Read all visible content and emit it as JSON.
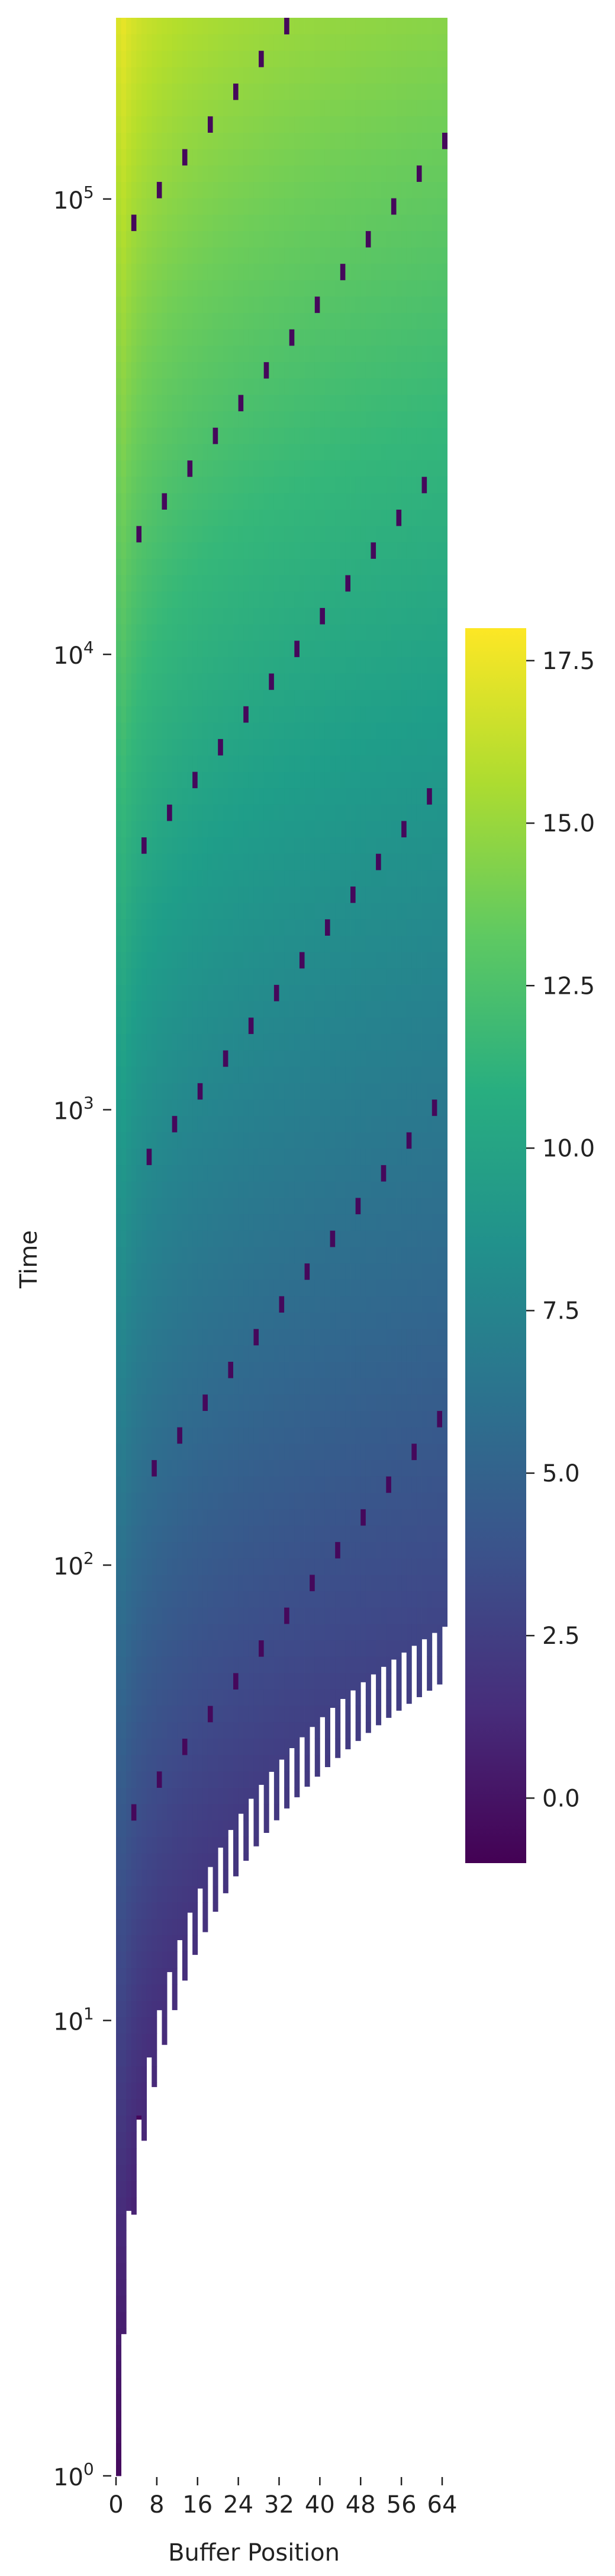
{
  "chart_data": {
    "type": "heatmap",
    "title": "",
    "xlabel": "Buffer Position",
    "ylabel": "Time",
    "x_range": [
      0,
      64
    ],
    "x_ticks": [
      0,
      8,
      16,
      24,
      32,
      40,
      48,
      56,
      64
    ],
    "y_scale": "log",
    "y_range": [
      1,
      250000
    ],
    "y_ticks": [
      {
        "value": 1,
        "base": "10",
        "exp": "0"
      },
      {
        "value": 10,
        "base": "10",
        "exp": "1"
      },
      {
        "value": 100,
        "base": "10",
        "exp": "2"
      },
      {
        "value": 1000,
        "base": "10",
        "exp": "3"
      },
      {
        "value": 10000,
        "base": "10",
        "exp": "4"
      },
      {
        "value": 100000,
        "base": "10",
        "exp": "5"
      }
    ],
    "colormap": "viridis",
    "colorbar": {
      "vmin": -1.0,
      "vmax": 18.0,
      "ticks": [
        "0.0",
        "2.5",
        "5.0",
        "7.5",
        "10.0",
        "12.5",
        "15.0",
        "17.5"
      ]
    },
    "value_model": "cell value ≈ log2(time) − log2(buffer position + 1); cells before the position is first written are blank; the value drops to about 0 where a position is overwritten"
  }
}
